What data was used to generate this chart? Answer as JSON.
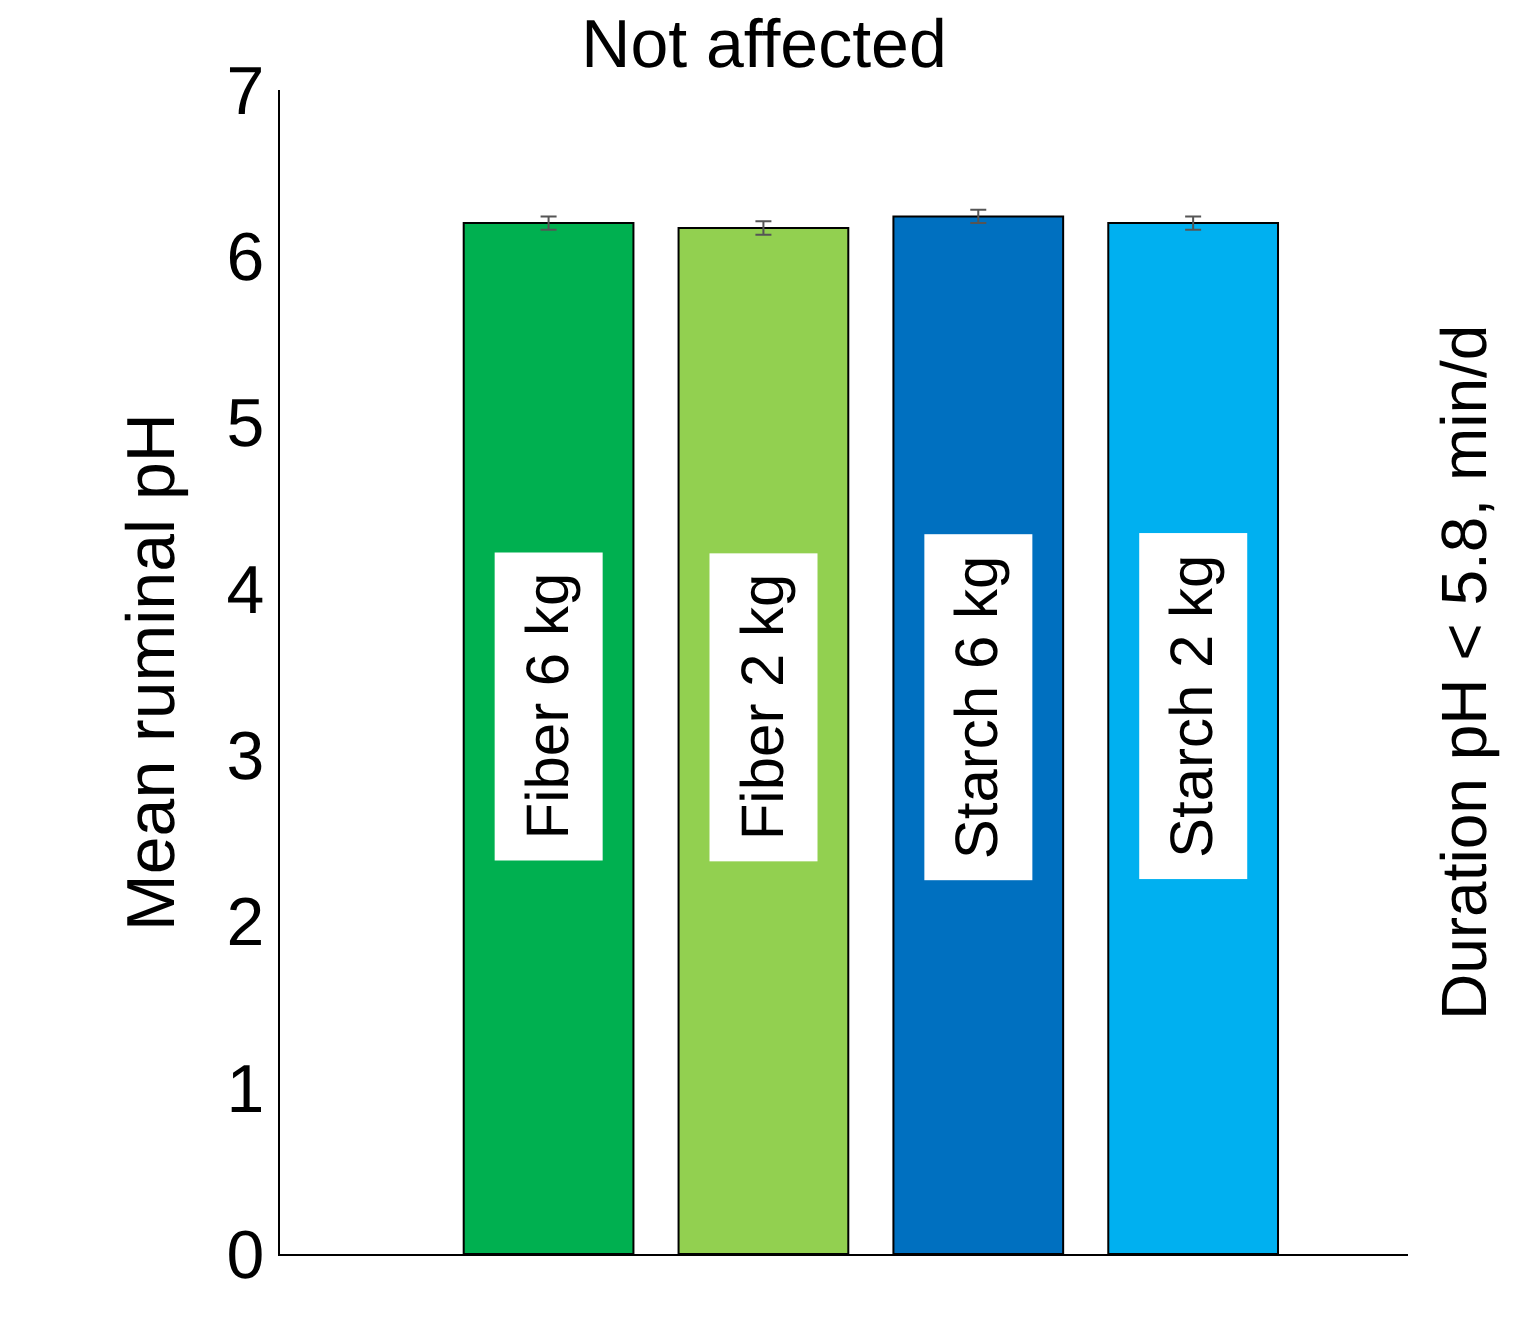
{
  "chart_data": {
    "type": "bar",
    "title": "Not affected",
    "ylabel": "Mean ruminal pH",
    "y2label": "Duration pH < 5.8, min/d",
    "categories": [
      "Fiber 6 kg",
      "Fiber 2 kg",
      "Starch 6 kg",
      "Starch 2 kg"
    ],
    "values": [
      6.2,
      6.17,
      6.24,
      6.2
    ],
    "colors": [
      "#00b050",
      "#92d050",
      "#0070c0",
      "#00b0f0"
    ],
    "errors": [
      0.04,
      0.04,
      0.04,
      0.04
    ],
    "ylim": [
      0,
      7
    ],
    "yticks": [
      0,
      1,
      2,
      3,
      4,
      5,
      6,
      7
    ],
    "tick_labels": "y"
  }
}
